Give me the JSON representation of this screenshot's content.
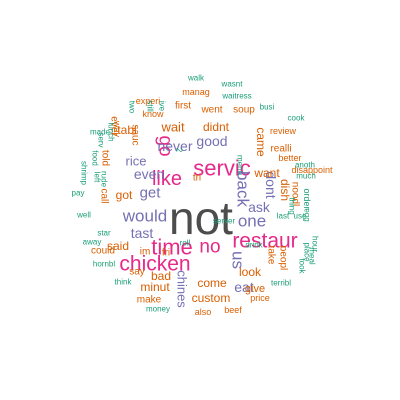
{
  "colors": {
    "gray": "#4d4d4d",
    "magenta": "#e7298a",
    "orange": "#d95f02",
    "purple": "#7570b3",
    "teal": "#1b9e77"
  },
  "words": [
    {
      "text": "not",
      "color": "gray"
    },
    {
      "text": "time",
      "color": "magenta"
    },
    {
      "text": "servic",
      "color": "magenta"
    },
    {
      "text": "chicken",
      "color": "magenta"
    },
    {
      "text": "restaur",
      "color": "magenta"
    },
    {
      "text": "like",
      "color": "magenta"
    },
    {
      "text": "no",
      "color": "magenta"
    },
    {
      "text": "go",
      "color": "magenta"
    },
    {
      "text": "would",
      "color": "purple"
    },
    {
      "text": "one",
      "color": "purple"
    },
    {
      "text": "back",
      "color": "purple"
    },
    {
      "text": "us",
      "color": "purple"
    },
    {
      "text": "get",
      "color": "purple"
    },
    {
      "text": "ask",
      "color": "purple"
    },
    {
      "text": "good",
      "color": "purple"
    },
    {
      "text": "tast",
      "color": "purple"
    },
    {
      "text": "eat",
      "color": "purple"
    },
    {
      "text": "never",
      "color": "purple"
    },
    {
      "text": "dont",
      "color": "purple"
    },
    {
      "text": "even",
      "color": "purple"
    },
    {
      "text": "rice",
      "color": "purple"
    },
    {
      "text": "chines",
      "color": "purple"
    },
    {
      "text": "got",
      "color": "orange"
    },
    {
      "text": "wait",
      "color": "orange"
    },
    {
      "text": "didnt",
      "color": "orange"
    },
    {
      "text": "tabl",
      "color": "orange"
    },
    {
      "text": "want",
      "color": "orange"
    },
    {
      "text": "came",
      "color": "orange"
    },
    {
      "text": "dish",
      "color": "orange"
    },
    {
      "text": "said",
      "color": "orange"
    },
    {
      "text": "come",
      "color": "orange"
    },
    {
      "text": "look",
      "color": "orange"
    },
    {
      "text": "custom",
      "color": "orange"
    },
    {
      "text": "minut",
      "color": "orange"
    },
    {
      "text": "bad",
      "color": "orange"
    },
    {
      "text": "give",
      "color": "orange"
    },
    {
      "text": "say",
      "color": "orange"
    },
    {
      "text": "sauc",
      "color": "orange"
    },
    {
      "text": "soup",
      "color": "orange"
    },
    {
      "text": "went",
      "color": "orange"
    },
    {
      "text": "first",
      "color": "orange"
    },
    {
      "text": "realli",
      "color": "orange"
    },
    {
      "text": "call",
      "color": "orange"
    },
    {
      "text": "could",
      "color": "orange"
    },
    {
      "text": "told",
      "color": "orange"
    },
    {
      "text": "ever",
      "color": "orange"
    },
    {
      "text": "noodl",
      "color": "orange"
    },
    {
      "text": "take",
      "color": "orange"
    },
    {
      "text": "peopl",
      "color": "orange"
    },
    {
      "text": "make",
      "color": "orange"
    },
    {
      "text": "tri",
      "color": "orange"
    },
    {
      "text": "im",
      "color": "orange"
    },
    {
      "text": "fri",
      "color": "orange"
    },
    {
      "text": "know",
      "color": "orange"
    },
    {
      "text": "experi",
      "color": "orange"
    },
    {
      "text": "manag",
      "color": "orange"
    },
    {
      "text": "beef",
      "color": "orange"
    },
    {
      "text": "also",
      "color": "orange"
    },
    {
      "text": "price",
      "color": "orange"
    },
    {
      "text": "review",
      "color": "orange"
    },
    {
      "text": "better",
      "color": "orange"
    },
    {
      "text": "disappoint",
      "color": "orange"
    },
    {
      "text": "way",
      "color": "orange"
    },
    {
      "text": "order",
      "color": "teal"
    },
    {
      "text": "food",
      "color": "teal"
    },
    {
      "text": "place",
      "color": "teal"
    },
    {
      "text": "walk",
      "color": "teal"
    },
    {
      "text": "wasnt",
      "color": "teal"
    },
    {
      "text": "waitress",
      "color": "teal"
    },
    {
      "text": "busi",
      "color": "teal"
    },
    {
      "text": "cook",
      "color": "teal"
    },
    {
      "text": "much",
      "color": "teal"
    },
    {
      "text": "anoth",
      "color": "teal"
    },
    {
      "text": "use",
      "color": "teal"
    },
    {
      "text": "last",
      "color": "teal"
    },
    {
      "text": "server",
      "color": "teal"
    },
    {
      "text": "drink",
      "color": "teal"
    },
    {
      "text": "menu",
      "color": "teal"
    },
    {
      "text": "roll",
      "color": "teal"
    },
    {
      "text": "money",
      "color": "teal"
    },
    {
      "text": "think",
      "color": "teal"
    },
    {
      "text": "hornbl",
      "color": "teal"
    },
    {
      "text": "star",
      "color": "teal"
    },
    {
      "text": "away",
      "color": "teal"
    },
    {
      "text": "well",
      "color": "teal"
    },
    {
      "text": "pay",
      "color": "teal"
    },
    {
      "text": "shrimp",
      "color": "teal"
    },
    {
      "text": "left",
      "color": "teal"
    },
    {
      "text": "rude",
      "color": "teal"
    },
    {
      "text": "serv",
      "color": "teal"
    },
    {
      "text": "made",
      "color": "teal"
    },
    {
      "text": "lunch",
      "color": "teal"
    },
    {
      "text": "two",
      "color": "teal"
    },
    {
      "text": "still",
      "color": "teal"
    },
    {
      "text": "ive",
      "color": "teal"
    },
    {
      "text": "thing",
      "color": "teal"
    },
    {
      "text": "egg",
      "color": "teal"
    },
    {
      "text": "hour",
      "color": "teal"
    },
    {
      "text": "meal",
      "color": "teal"
    },
    {
      "text": "took",
      "color": "teal"
    },
    {
      "text": "terribl",
      "color": "teal"
    },
    {
      "text": "2",
      "color": "teal"
    }
  ]
}
